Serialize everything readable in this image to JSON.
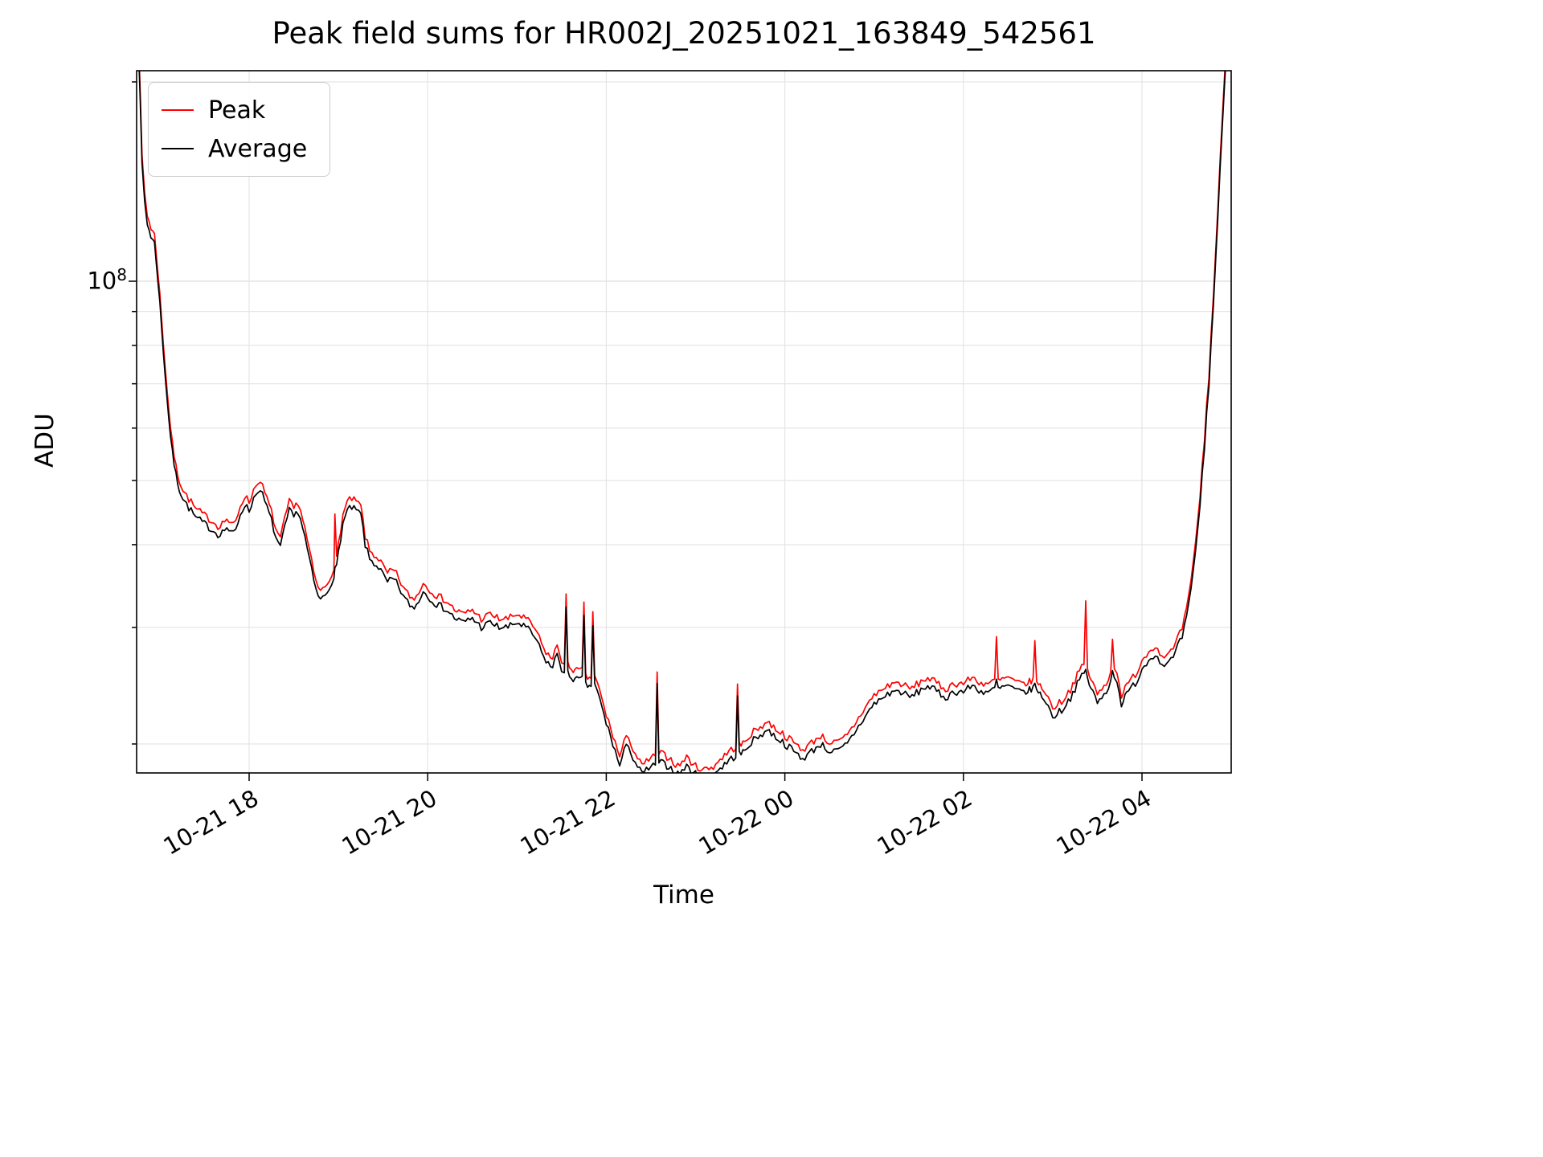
{
  "chart_data": {
    "type": "line",
    "title": "Peak field sums for HR002J_20251021_163849_542561",
    "xlabel": "Time",
    "ylabel": "ADU",
    "y_scale": "log",
    "y_major_tick": {
      "base": "10",
      "exp": "8"
    },
    "y_unit": "ADU, values stored in millions (1e6)",
    "ylim_millions": [
      18,
      208
    ],
    "x_unit": "decimal hours: 16.74-24 = Oct 21 HH.hh, 24-29 = Oct 22 (hours past midnight + 24)",
    "xlim": [
      16.74,
      29.0
    ],
    "grid": "both major and minor, light gray",
    "legend_position": "upper left",
    "y_gridlines_millions": [
      20,
      30,
      40,
      50,
      60,
      70,
      80,
      90,
      100,
      200
    ],
    "y_major_gridline_millions": 100,
    "noise_pct": 1.3,
    "x_ticks": [
      {
        "value": 18,
        "label": "10-21 18"
      },
      {
        "value": 20,
        "label": "10-21 20"
      },
      {
        "value": 22,
        "label": "10-21 22"
      },
      {
        "value": 24,
        "label": "10-22 00"
      },
      {
        "value": 26,
        "label": "10-22 02"
      },
      {
        "value": 28,
        "label": "10-22 04"
      }
    ],
    "x": [
      16.74,
      16.76,
      16.78,
      16.8,
      16.83,
      16.86,
      16.9,
      16.94,
      16.98,
      17.02,
      17.06,
      17.1,
      17.14,
      17.18,
      17.22,
      17.26,
      17.3,
      17.35,
      17.4,
      17.45,
      17.5,
      17.55,
      17.6,
      17.65,
      17.7,
      17.75,
      17.8,
      17.85,
      17.9,
      17.95,
      18.0,
      18.05,
      18.1,
      18.15,
      18.2,
      18.25,
      18.3,
      18.35,
      18.4,
      18.45,
      18.5,
      18.55,
      18.6,
      18.65,
      18.7,
      18.75,
      18.8,
      18.85,
      18.9,
      18.95,
      18.96,
      18.98,
      19.0,
      19.05,
      19.1,
      19.15,
      19.2,
      19.25,
      19.3,
      19.35,
      19.4,
      19.45,
      19.5,
      19.55,
      19.6,
      19.65,
      19.7,
      19.75,
      19.8,
      19.85,
      19.9,
      19.95,
      20.0,
      20.05,
      20.1,
      20.2,
      20.3,
      20.4,
      20.5,
      20.6,
      20.7,
      20.8,
      20.9,
      21.0,
      21.1,
      21.2,
      21.3,
      21.4,
      21.45,
      21.5,
      21.53,
      21.55,
      21.57,
      21.65,
      21.73,
      21.75,
      21.77,
      21.83,
      21.85,
      21.87,
      21.9,
      22.0,
      22.05,
      22.1,
      22.15,
      22.2,
      22.25,
      22.3,
      22.4,
      22.5,
      22.55,
      22.57,
      22.59,
      22.7,
      22.8,
      22.9,
      23.0,
      23.1,
      23.2,
      23.3,
      23.4,
      23.45,
      23.47,
      23.49,
      23.55,
      23.6,
      23.7,
      23.8,
      23.9,
      24.0,
      24.1,
      24.2,
      24.3,
      24.4,
      24.5,
      24.6,
      24.7,
      24.8,
      24.9,
      25.0,
      25.1,
      25.2,
      25.3,
      25.4,
      25.5,
      25.6,
      25.7,
      25.8,
      25.9,
      26.0,
      26.1,
      26.2,
      26.3,
      26.35,
      26.37,
      26.39,
      26.5,
      26.6,
      26.7,
      26.78,
      26.8,
      26.82,
      26.9,
      27.0,
      27.1,
      27.2,
      27.3,
      27.35,
      27.37,
      27.39,
      27.45,
      27.5,
      27.6,
      27.65,
      27.67,
      27.69,
      27.72,
      27.77,
      27.85,
      27.95,
      28.0,
      28.1,
      28.15,
      28.2,
      28.3,
      28.35,
      28.4,
      28.45,
      28.5,
      28.55,
      28.6,
      28.65,
      28.7,
      28.75,
      28.8,
      28.85,
      28.9,
      28.95,
      29.0
    ],
    "series": [
      {
        "name": "Peak",
        "color": "#ff0000",
        "values_millions": [
          278,
          237,
          190.6,
          154.5,
          136,
          125.7,
          120.5,
          117.4,
          103,
          87.6,
          74.2,
          63.9,
          56.7,
          52.5,
          50,
          48.4,
          47.4,
          46.4,
          45.3,
          44.8,
          44.3,
          43.8,
          43.3,
          42.7,
          43.1,
          43.8,
          42.7,
          43.3,
          45.8,
          47.4,
          46.4,
          48.4,
          50,
          48.9,
          46.9,
          44.8,
          42.2,
          40.7,
          43.8,
          46.4,
          45.3,
          46.4,
          43.8,
          40.7,
          37.6,
          35,
          34,
          34.5,
          35.5,
          37.1,
          44,
          38.1,
          40.2,
          44.3,
          46.4,
          46.9,
          46.4,
          45.8,
          41.2,
          39.1,
          38.6,
          38.1,
          37.1,
          36.1,
          36.6,
          36.1,
          35,
          34,
          33.5,
          33,
          34,
          35,
          34.5,
          34,
          33.5,
          33,
          31.9,
          31.4,
          31.9,
          30.9,
          31.4,
          30.9,
          30.9,
          31.4,
          30.9,
          29.9,
          27.8,
          26.8,
          28.3,
          26.8,
          26.3,
          33.5,
          26.3,
          25.8,
          25.8,
          33,
          25.2,
          25.2,
          31.5,
          25.2,
          24.7,
          22.1,
          21.1,
          20.1,
          19.1,
          20.1,
          20.6,
          19.6,
          18.5,
          19.1,
          19.1,
          25.5,
          19.4,
          19.1,
          18.5,
          19.1,
          18.5,
          18.3,
          18.5,
          19.1,
          19.6,
          19.8,
          24.5,
          19.9,
          20.1,
          20.6,
          21.1,
          21.6,
          21.1,
          20.6,
          20.1,
          19.6,
          20.1,
          20.6,
          20.1,
          20.1,
          20.6,
          21.6,
          22.7,
          23.7,
          24.2,
          24.7,
          24.7,
          24.2,
          24.7,
          25.2,
          24.7,
          24.2,
          24.7,
          24.7,
          25.2,
          24.7,
          24.7,
          24.9,
          29,
          24.9,
          25.2,
          24.7,
          24.7,
          24.9,
          29,
          24.7,
          24.2,
          22.7,
          23.2,
          24.2,
          25.8,
          26.3,
          33,
          25.8,
          24.7,
          23.7,
          24.7,
          25.8,
          29,
          25.8,
          25.8,
          23.7,
          24.7,
          25.8,
          26.8,
          27.8,
          28.3,
          27.3,
          27.3,
          27.8,
          28.8,
          29.9,
          31.9,
          35,
          40.2,
          47.4,
          57.7,
          72.1,
          94.8,
          128.8,
          175.1,
          236.9,
          288.4
        ]
      },
      {
        "name": "Average",
        "color": "#000000",
        "values_millions": [
          270,
          230,
          185,
          150,
          132,
          122,
          117,
          114,
          100,
          85,
          72,
          62,
          55,
          51,
          48.5,
          47,
          46,
          45,
          44,
          43.5,
          43,
          42.5,
          42,
          41.5,
          41.8,
          42.5,
          41.5,
          42,
          44.5,
          46,
          45,
          47,
          48.5,
          47.5,
          45.5,
          43.5,
          41,
          39.5,
          42.5,
          45,
          44,
          45,
          42.5,
          39.5,
          36.5,
          34,
          33,
          33.5,
          34.5,
          36,
          36.5,
          37,
          39,
          43,
          45,
          45.5,
          45,
          44.5,
          40,
          38,
          37.5,
          37,
          36,
          35,
          35.5,
          35,
          34,
          33,
          32.5,
          32,
          33,
          34,
          33.5,
          33,
          32.5,
          32,
          31,
          30.5,
          31,
          30,
          30.5,
          30,
          30,
          30.5,
          30,
          29,
          27,
          26,
          27.5,
          26,
          25.5,
          32,
          25.5,
          25,
          25,
          31.5,
          24.5,
          24.5,
          30,
          24.5,
          24,
          21.5,
          20.5,
          19.5,
          18.5,
          19.5,
          20,
          19,
          18,
          18.5,
          18.5,
          24.5,
          18.8,
          18.5,
          18,
          18.5,
          18,
          17.8,
          18,
          18.5,
          19,
          19.2,
          23.5,
          19.3,
          19.5,
          20,
          20.5,
          21,
          20.5,
          20,
          19.5,
          19,
          19.5,
          20,
          19.5,
          19.5,
          20,
          21,
          22,
          23,
          23.5,
          24,
          24,
          23.5,
          24,
          24.5,
          24,
          23.5,
          24,
          24,
          24.5,
          24,
          24,
          24.2,
          25,
          24.2,
          24.5,
          24,
          24,
          24.2,
          25,
          24,
          23.5,
          22,
          22.5,
          23.5,
          25,
          25.5,
          26,
          25,
          24,
          23,
          24,
          25,
          26,
          25,
          25,
          23,
          24,
          25,
          26,
          27,
          27.5,
          26.5,
          26.5,
          27,
          28,
          29,
          31,
          34,
          39,
          46,
          56,
          70,
          92,
          125,
          170,
          230,
          280
        ]
      }
    ]
  }
}
